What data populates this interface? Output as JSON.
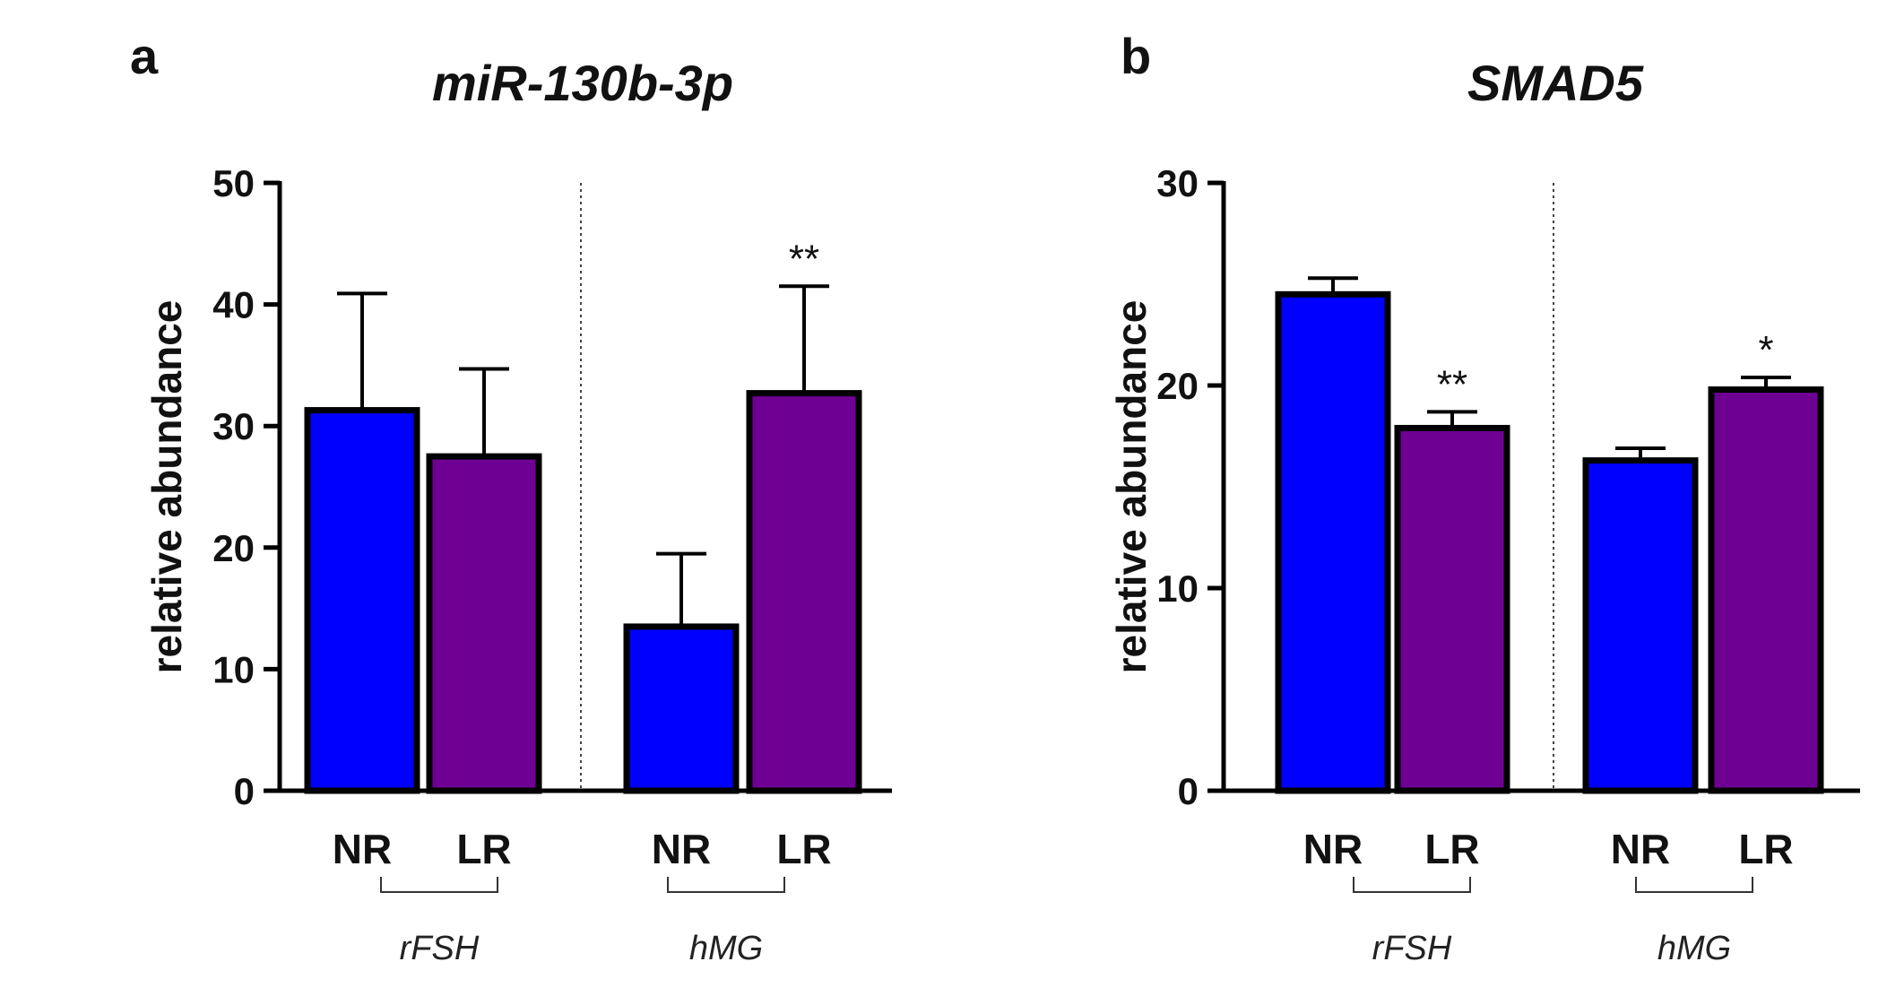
{
  "chart_data": [
    {
      "panel": "a",
      "type": "bar",
      "title": "miR-130b-3p",
      "xlabel": "",
      "ylabel": "relative abundance",
      "ylim": [
        0,
        50
      ],
      "yticks": [
        0,
        10,
        20,
        30,
        40,
        50
      ],
      "grid": false,
      "groups": [
        {
          "name": "rFSH",
          "categories": [
            "NR",
            "LR"
          ]
        },
        {
          "name": "hMG",
          "categories": [
            "NR",
            "LR"
          ]
        }
      ],
      "bars": [
        {
          "group": "rFSH",
          "label": "NR",
          "value": 31.3,
          "error": 9.6,
          "color": "#0000ff",
          "annotation": ""
        },
        {
          "group": "rFSH",
          "label": "LR",
          "value": 27.5,
          "error": 7.2,
          "color": "#6f0094",
          "annotation": ""
        },
        {
          "group": "hMG",
          "label": "NR",
          "value": 13.5,
          "error": 6.0,
          "color": "#0000ff",
          "annotation": ""
        },
        {
          "group": "hMG",
          "label": "LR",
          "value": 32.7,
          "error": 8.8,
          "color": "#6f0094",
          "annotation": "**"
        }
      ]
    },
    {
      "panel": "b",
      "type": "bar",
      "title": "SMAD5",
      "xlabel": "",
      "ylabel": "relative abundance",
      "ylim": [
        0,
        30
      ],
      "yticks": [
        0,
        10,
        20,
        30
      ],
      "grid": false,
      "groups": [
        {
          "name": "rFSH",
          "categories": [
            "NR",
            "LR"
          ]
        },
        {
          "name": "hMG",
          "categories": [
            "NR",
            "LR"
          ]
        }
      ],
      "bars": [
        {
          "group": "rFSH",
          "label": "NR",
          "value": 24.5,
          "error": 0.8,
          "color": "#0000ff",
          "annotation": ""
        },
        {
          "group": "rFSH",
          "label": "LR",
          "value": 17.9,
          "error": 0.8,
          "color": "#6f0094",
          "annotation": "**"
        },
        {
          "group": "hMG",
          "label": "NR",
          "value": 16.3,
          "error": 0.6,
          "color": "#0000ff",
          "annotation": ""
        },
        {
          "group": "hMG",
          "label": "LR",
          "value": 19.8,
          "error": 0.6,
          "color": "#6f0094",
          "annotation": "*"
        }
      ]
    }
  ]
}
